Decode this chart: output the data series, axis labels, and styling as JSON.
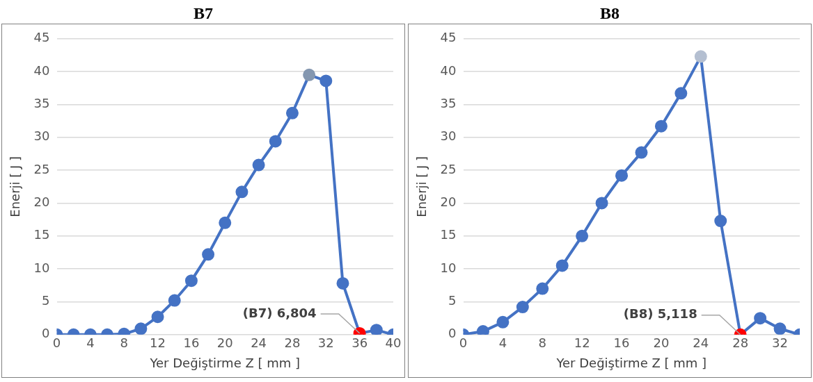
{
  "chart_data": [
    {
      "type": "line",
      "title": "B7",
      "xlabel": "Yer Değiştirme Z [ mm ]",
      "ylabel": "Enerji [ J ]",
      "x": [
        0,
        2,
        4,
        6,
        8,
        10,
        12,
        14,
        16,
        18,
        20,
        22,
        24,
        26,
        28,
        30,
        32,
        34,
        36,
        38,
        40
      ],
      "series": [
        {
          "color": "#4472c4",
          "colors": [
            "#4472c4",
            "#4472c4",
            "#4472c4",
            "#4472c4",
            "#4472c4",
            "#4472c4",
            "#4472c4",
            "#4472c4",
            "#4472c4",
            "#4472c4",
            "#4472c4",
            "#4472c4",
            "#4472c4",
            "#4472c4",
            "#4472c4",
            "#8497b0",
            "#4472c4",
            "#4472c4",
            "#ff0000",
            "#4472c4",
            "#4472c4"
          ],
          "values": [
            0,
            0,
            0,
            0,
            0.1,
            0.9,
            2.7,
            5.2,
            8.2,
            12.2,
            17.0,
            21.7,
            25.8,
            29.4,
            33.7,
            39.5,
            38.6,
            7.8,
            0.2,
            0.7,
            0
          ]
        }
      ],
      "xlim": [
        0,
        40
      ],
      "xticks": [
        0,
        4,
        8,
        12,
        16,
        20,
        24,
        28,
        32,
        36,
        40
      ],
      "ylim": [
        0,
        45
      ],
      "yticks": [
        0,
        5,
        10,
        15,
        20,
        25,
        30,
        35,
        40,
        45
      ],
      "grid": "y",
      "legend": false,
      "marker": "circle",
      "line_style": "solid",
      "annotations": [
        {
          "text": "(B7) 6,804",
          "x": 36,
          "y": 0.2
        }
      ]
    },
    {
      "type": "line",
      "title": "B8",
      "xlabel": "Yer Değiştirme Z [ mm ]",
      "ylabel": "Enerji [ J ]",
      "x": [
        0,
        2,
        4,
        6,
        8,
        10,
        12,
        14,
        16,
        18,
        20,
        22,
        24,
        26,
        28,
        30,
        32,
        34
      ],
      "series": [
        {
          "color": "#4472c4",
          "colors": [
            "#4472c4",
            "#4472c4",
            "#4472c4",
            "#4472c4",
            "#4472c4",
            "#4472c4",
            "#4472c4",
            "#4472c4",
            "#4472c4",
            "#4472c4",
            "#4472c4",
            "#4472c4",
            "#b4bfd1",
            "#4472c4",
            "#ff0000",
            "#4472c4",
            "#4472c4",
            "#4472c4"
          ],
          "values": [
            0,
            0.5,
            1.9,
            4.2,
            7.0,
            10.5,
            15.0,
            20.0,
            24.2,
            27.7,
            31.7,
            36.7,
            42.3,
            17.3,
            0,
            2.5,
            0.9,
            0
          ]
        }
      ],
      "xlim": [
        0,
        34
      ],
      "xticks": [
        0,
        4,
        8,
        12,
        16,
        20,
        24,
        28,
        32
      ],
      "ylim": [
        0,
        45
      ],
      "yticks": [
        0,
        5,
        10,
        15,
        20,
        25,
        30,
        35,
        40,
        45
      ],
      "grid": "y",
      "legend": false,
      "marker": "circle",
      "line_style": "solid",
      "annotations": [
        {
          "text": "(B8) 5,118",
          "x": 28,
          "y": 0
        }
      ]
    }
  ]
}
